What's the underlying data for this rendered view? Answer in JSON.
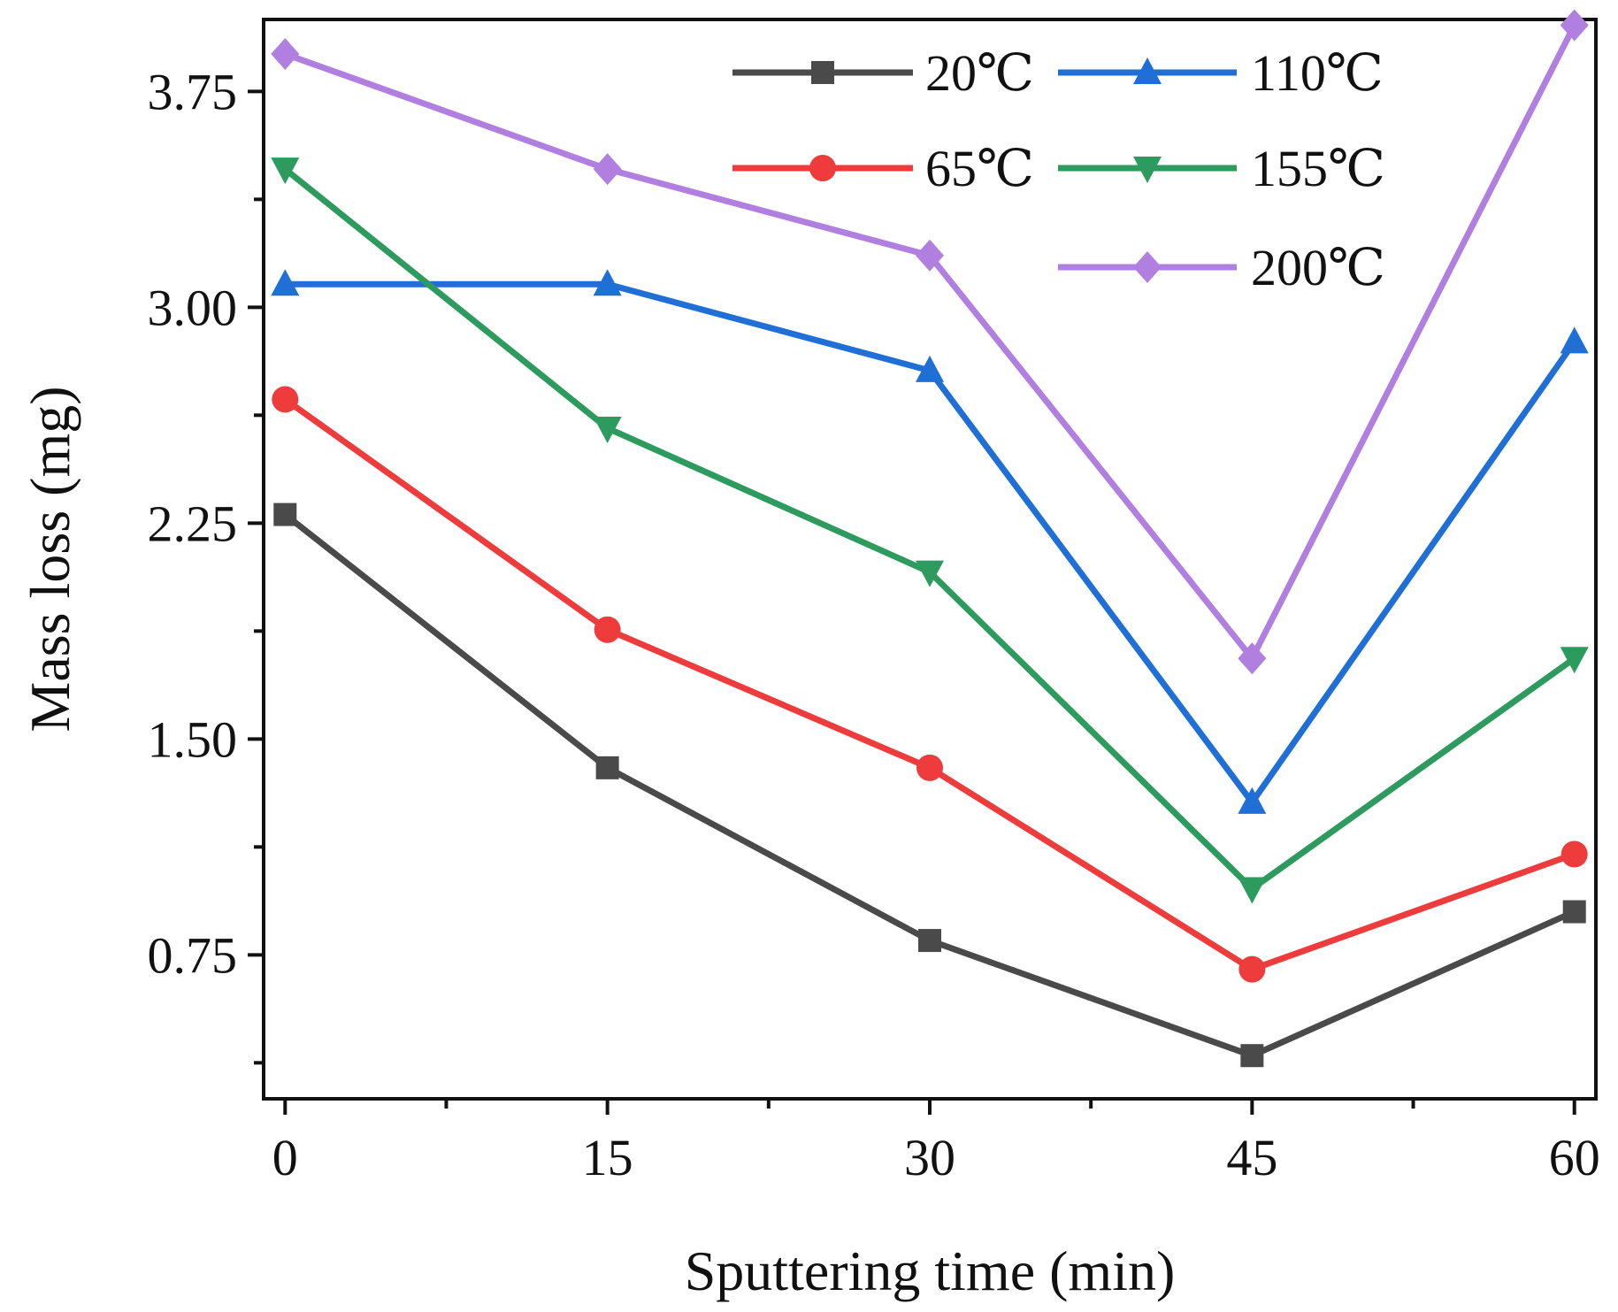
{
  "chart_data": {
    "type": "line",
    "title": "",
    "xlabel": "Sputtering time (min)",
    "ylabel": "Mass loss (mg)",
    "x": [
      0,
      15,
      30,
      45,
      60
    ],
    "xlim": [
      -1,
      61
    ],
    "ylim": [
      0.25,
      4.0
    ],
    "xticks": [
      0,
      15,
      30,
      45,
      60
    ],
    "xtick_labels": [
      "0",
      "15",
      "30",
      "45",
      "60"
    ],
    "yticks": [
      0.75,
      1.5,
      2.25,
      3.0,
      3.75
    ],
    "ytick_labels": [
      "0.75",
      "1.50",
      "2.25",
      "3.00",
      "3.75"
    ],
    "grid": false,
    "legend_position": "top-right",
    "series": [
      {
        "name": "20℃",
        "color": "#4a4a4a",
        "marker": "square",
        "values": [
          2.28,
          1.4,
          0.8,
          0.4,
          0.9
        ]
      },
      {
        "name": "65℃",
        "color": "#ee3b3b",
        "marker": "circle",
        "values": [
          2.68,
          1.88,
          1.4,
          0.7,
          1.1
        ]
      },
      {
        "name": "110℃",
        "color": "#1f6fd6",
        "marker": "triangle-up",
        "values": [
          3.08,
          3.08,
          2.78,
          1.28,
          2.88
        ]
      },
      {
        "name": "155℃",
        "color": "#2e9b5e",
        "marker": "triangle-down",
        "values": [
          3.48,
          2.58,
          2.08,
          0.98,
          1.78
        ]
      },
      {
        "name": "200℃",
        "color": "#b07fe0",
        "marker": "diamond",
        "values": [
          3.88,
          3.48,
          3.18,
          1.78,
          3.98
        ]
      }
    ]
  }
}
